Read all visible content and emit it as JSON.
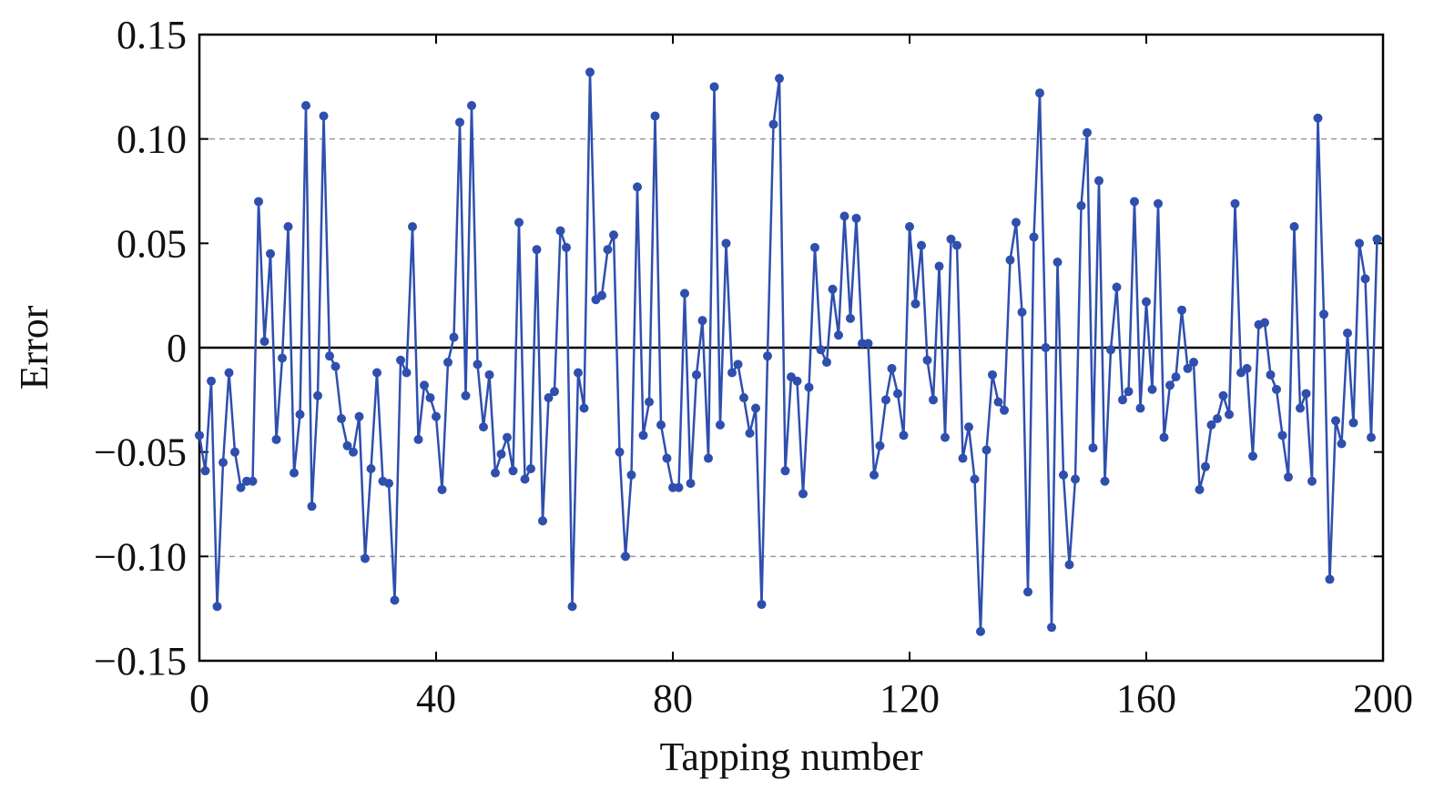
{
  "chart_data": {
    "type": "line",
    "xlabel": "Tapping number",
    "ylabel": "Error",
    "x": [
      0,
      1,
      2,
      3,
      4,
      5,
      6,
      7,
      8,
      9,
      10,
      11,
      12,
      13,
      14,
      15,
      16,
      17,
      18,
      19,
      20,
      21,
      22,
      23,
      24,
      25,
      26,
      27,
      28,
      29,
      30,
      31,
      32,
      33,
      34,
      35,
      36,
      37,
      38,
      39,
      40,
      41,
      42,
      43,
      44,
      45,
      46,
      47,
      48,
      49,
      50,
      51,
      52,
      53,
      54,
      55,
      56,
      57,
      58,
      59,
      60,
      61,
      62,
      63,
      64,
      65,
      66,
      67,
      68,
      69,
      70,
      71,
      72,
      73,
      74,
      75,
      76,
      77,
      78,
      79,
      80,
      81,
      82,
      83,
      84,
      85,
      86,
      87,
      88,
      89,
      90,
      91,
      92,
      93,
      94,
      95,
      96,
      97,
      98,
      99,
      100,
      101,
      102,
      103,
      104,
      105,
      106,
      107,
      108,
      109,
      110,
      111,
      112,
      113,
      114,
      115,
      116,
      117,
      118,
      119,
      120,
      121,
      122,
      123,
      124,
      125,
      126,
      127,
      128,
      129,
      130,
      131,
      132,
      133,
      134,
      135,
      136,
      137,
      138,
      139,
      140,
      141,
      142,
      143,
      144,
      145,
      146,
      147,
      148,
      149,
      150,
      151,
      152,
      153,
      154,
      155,
      156,
      157,
      158,
      159,
      160,
      161,
      162,
      163,
      164,
      165,
      166,
      167,
      168,
      169,
      170,
      171,
      172,
      173,
      174,
      175,
      176,
      177,
      178,
      179,
      180,
      181,
      182,
      183,
      184,
      185,
      186,
      187,
      188,
      189,
      190,
      191,
      192,
      193,
      194,
      195,
      196,
      197,
      198,
      199
    ],
    "series": [
      {
        "name": "Error",
        "color": "#2f4fae",
        "values": [
          -0.042,
          -0.059,
          -0.016,
          -0.124,
          -0.055,
          -0.012,
          -0.05,
          -0.067,
          -0.064,
          -0.064,
          0.07,
          0.003,
          0.045,
          -0.044,
          -0.005,
          0.058,
          -0.06,
          -0.032,
          0.116,
          -0.076,
          -0.023,
          0.111,
          -0.004,
          -0.009,
          -0.034,
          -0.047,
          -0.05,
          -0.033,
          -0.101,
          -0.058,
          -0.012,
          -0.064,
          -0.065,
          -0.121,
          -0.006,
          -0.012,
          0.058,
          -0.044,
          -0.018,
          -0.024,
          -0.033,
          -0.068,
          -0.007,
          0.005,
          0.108,
          -0.023,
          0.116,
          -0.008,
          -0.038,
          -0.013,
          -0.06,
          -0.051,
          -0.043,
          -0.059,
          0.06,
          -0.063,
          -0.058,
          0.047,
          -0.083,
          -0.024,
          -0.021,
          0.056,
          0.048,
          -0.124,
          -0.012,
          -0.029,
          0.132,
          0.023,
          0.025,
          0.047,
          0.054,
          -0.05,
          -0.1,
          -0.061,
          0.077,
          -0.042,
          -0.026,
          0.111,
          -0.037,
          -0.053,
          -0.067,
          -0.067,
          0.026,
          -0.065,
          -0.013,
          0.013,
          -0.053,
          0.125,
          -0.037,
          0.05,
          -0.012,
          -0.008,
          -0.024,
          -0.041,
          -0.029,
          -0.123,
          -0.004,
          0.107,
          0.129,
          -0.059,
          -0.014,
          -0.016,
          -0.07,
          -0.019,
          0.048,
          -0.001,
          -0.007,
          0.028,
          0.006,
          0.063,
          0.014,
          0.062,
          0.002,
          0.002,
          -0.061,
          -0.047,
          -0.025,
          -0.01,
          -0.022,
          -0.042,
          0.058,
          0.021,
          0.049,
          -0.006,
          -0.025,
          0.039,
          -0.043,
          0.052,
          0.049,
          -0.053,
          -0.038,
          -0.063,
          -0.136,
          -0.049,
          -0.013,
          -0.026,
          -0.03,
          0.042,
          0.06,
          0.017,
          -0.117,
          0.053,
          0.122,
          0.0,
          -0.134,
          0.041,
          -0.061,
          -0.104,
          -0.063,
          0.068,
          0.103,
          -0.048,
          0.08,
          -0.064,
          -0.001,
          0.029,
          -0.025,
          -0.021,
          0.07,
          -0.029,
          0.022,
          -0.02,
          0.069,
          -0.043,
          -0.018,
          -0.014,
          0.018,
          -0.01,
          -0.007,
          -0.068,
          -0.057,
          -0.037,
          -0.034,
          -0.023,
          -0.032,
          0.069,
          -0.012,
          -0.01,
          -0.052,
          0.011,
          0.012,
          -0.013,
          -0.02,
          -0.042,
          -0.062,
          0.058,
          -0.029,
          -0.022,
          -0.064,
          0.11,
          0.016,
          -0.111,
          -0.035,
          -0.046,
          0.007,
          -0.036,
          0.05,
          0.033,
          -0.043,
          0.052
        ]
      }
    ],
    "xlim": [
      0,
      200
    ],
    "xticks": [
      0,
      40,
      80,
      120,
      160,
      200
    ],
    "ylim": [
      -0.15,
      0.15
    ],
    "yticks": [
      {
        "value": -0.15,
        "label": "−0.15"
      },
      {
        "value": -0.1,
        "label": "−0.10"
      },
      {
        "value": -0.05,
        "label": "−0.05"
      },
      0,
      0.05,
      {
        "value": 0.1,
        "label": "0.10"
      },
      0.15
    ],
    "grid_yticks": [
      -0.1,
      0.1
    ],
    "zero_line": true
  }
}
